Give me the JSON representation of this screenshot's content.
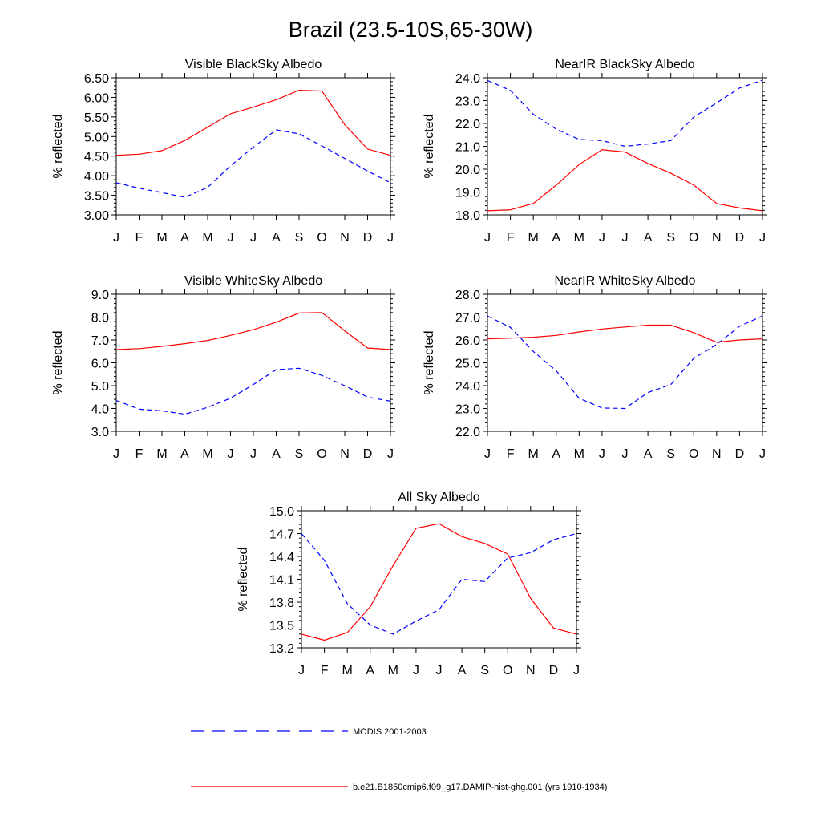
{
  "title": "Brazil (23.5-10S,65-30W)",
  "legend": [
    {
      "label": "MODIS 2001-2003",
      "color": "#0000ff",
      "dash": true
    },
    {
      "label": "b.e21.B1850cmip6.f09_g17.DAMIP-hist-ghg.001 (yrs 1910-1934)",
      "color": "#ff0000",
      "dash": false
    }
  ],
  "chart_data": [
    {
      "type": "line",
      "title": "Visible BlackSky Albedo",
      "ylabel": "% reflected",
      "categories": [
        "J",
        "F",
        "M",
        "A",
        "M",
        "J",
        "J",
        "A",
        "S",
        "O",
        "N",
        "D",
        "J"
      ],
      "ylim": [
        3.0,
        6.5
      ],
      "yticks": [
        "3.00",
        "3.50",
        "4.00",
        "4.50",
        "5.00",
        "5.50",
        "6.00",
        "6.50"
      ],
      "series": [
        {
          "name": "MODIS 2001-2003",
          "color": "#0000ff",
          "dash": true,
          "values": [
            3.82,
            3.68,
            3.57,
            3.45,
            3.7,
            4.25,
            4.73,
            5.17,
            5.07,
            4.76,
            4.44,
            4.12,
            3.82
          ]
        },
        {
          "name": "b.e21.B1850cmip6.f09_g17.DAMIP-hist-ghg.001 (yrs 1910-1934)",
          "color": "#ff0000",
          "dash": false,
          "values": [
            4.52,
            4.55,
            4.64,
            4.9,
            5.24,
            5.58,
            5.75,
            5.94,
            6.18,
            6.16,
            5.3,
            4.68,
            4.52
          ]
        }
      ]
    },
    {
      "type": "line",
      "title": "NearIR BlackSky Albedo",
      "ylabel": "% reflected",
      "categories": [
        "J",
        "F",
        "M",
        "A",
        "M",
        "J",
        "J",
        "A",
        "S",
        "O",
        "N",
        "D",
        "J"
      ],
      "ylim": [
        18.0,
        24.0
      ],
      "yticks": [
        "18.0",
        "19.0",
        "20.0",
        "21.0",
        "22.0",
        "23.0",
        "24.0"
      ],
      "series": [
        {
          "name": "MODIS 2001-2003",
          "color": "#0000ff",
          "dash": true,
          "values": [
            23.88,
            23.45,
            22.4,
            21.75,
            21.3,
            21.25,
            21.0,
            21.1,
            21.25,
            22.28,
            22.9,
            23.55,
            23.9
          ]
        },
        {
          "name": "b.e21.B1850cmip6.f09_g17.DAMIP-hist-ghg.001 (yrs 1910-1934)",
          "color": "#ff0000",
          "dash": false,
          "values": [
            18.18,
            18.22,
            18.5,
            19.3,
            20.2,
            20.85,
            20.75,
            20.25,
            19.82,
            19.3,
            18.5,
            18.3,
            18.18
          ]
        }
      ]
    },
    {
      "type": "line",
      "title": "Visible WhiteSky Albedo",
      "ylabel": "% reflected",
      "categories": [
        "J",
        "F",
        "M",
        "A",
        "M",
        "J",
        "J",
        "A",
        "S",
        "O",
        "N",
        "D",
        "J"
      ],
      "ylim": [
        3.0,
        9.0
      ],
      "yticks": [
        "3.0",
        "4.0",
        "5.0",
        "6.0",
        "7.0",
        "8.0",
        "9.0"
      ],
      "series": [
        {
          "name": "MODIS 2001-2003",
          "color": "#0000ff",
          "dash": true,
          "values": [
            4.35,
            3.97,
            3.9,
            3.75,
            4.05,
            4.45,
            5.05,
            5.7,
            5.76,
            5.45,
            5.0,
            4.5,
            4.32
          ]
        },
        {
          "name": "b.e21.B1850cmip6.f09_g17.DAMIP-hist-ghg.001 (yrs 1910-1934)",
          "color": "#ff0000",
          "dash": false,
          "values": [
            6.58,
            6.62,
            6.72,
            6.84,
            6.98,
            7.2,
            7.45,
            7.78,
            8.18,
            8.2,
            7.4,
            6.65,
            6.58
          ]
        }
      ]
    },
    {
      "type": "line",
      "title": "NearIR WhiteSky Albedo",
      "ylabel": "% reflected",
      "categories": [
        "J",
        "F",
        "M",
        "A",
        "M",
        "J",
        "J",
        "A",
        "S",
        "O",
        "N",
        "D",
        "J"
      ],
      "ylim": [
        22.0,
        28.0
      ],
      "yticks": [
        "22.0",
        "23.0",
        "24.0",
        "25.0",
        "26.0",
        "27.0",
        "28.0"
      ],
      "series": [
        {
          "name": "MODIS 2001-2003",
          "color": "#0000ff",
          "dash": true,
          "values": [
            27.05,
            26.55,
            25.5,
            24.65,
            23.45,
            23.02,
            23.0,
            23.7,
            24.05,
            25.2,
            25.8,
            26.6,
            27.05
          ]
        },
        {
          "name": "b.e21.B1850cmip6.f09_g17.DAMIP-hist-ghg.001 (yrs 1910-1934)",
          "color": "#ff0000",
          "dash": false,
          "values": [
            26.05,
            26.08,
            26.12,
            26.2,
            26.35,
            26.48,
            26.57,
            26.65,
            26.65,
            26.32,
            25.9,
            26.0,
            26.05
          ]
        }
      ]
    },
    {
      "type": "line",
      "title": "All Sky Albedo",
      "ylabel": "% reflected",
      "categories": [
        "J",
        "F",
        "M",
        "A",
        "M",
        "J",
        "J",
        "A",
        "S",
        "O",
        "N",
        "D",
        "J"
      ],
      "ylim": [
        13.2,
        15.0
      ],
      "yticks": [
        "13.2",
        "13.5",
        "13.8",
        "14.1",
        "14.4",
        "14.7",
        "15.0"
      ],
      "series": [
        {
          "name": "MODIS 2001-2003",
          "color": "#0000ff",
          "dash": true,
          "values": [
            14.7,
            14.35,
            13.78,
            13.5,
            13.38,
            13.55,
            13.7,
            14.1,
            14.07,
            14.38,
            14.45,
            14.62,
            14.7
          ]
        },
        {
          "name": "b.e21.B1850cmip6.f09_g17.DAMIP-hist-ghg.001 (yrs 1910-1934)",
          "color": "#ff0000",
          "dash": false,
          "values": [
            13.38,
            13.3,
            13.4,
            13.74,
            14.28,
            14.77,
            14.83,
            14.66,
            14.57,
            14.43,
            13.85,
            13.46,
            13.38
          ]
        }
      ]
    }
  ]
}
